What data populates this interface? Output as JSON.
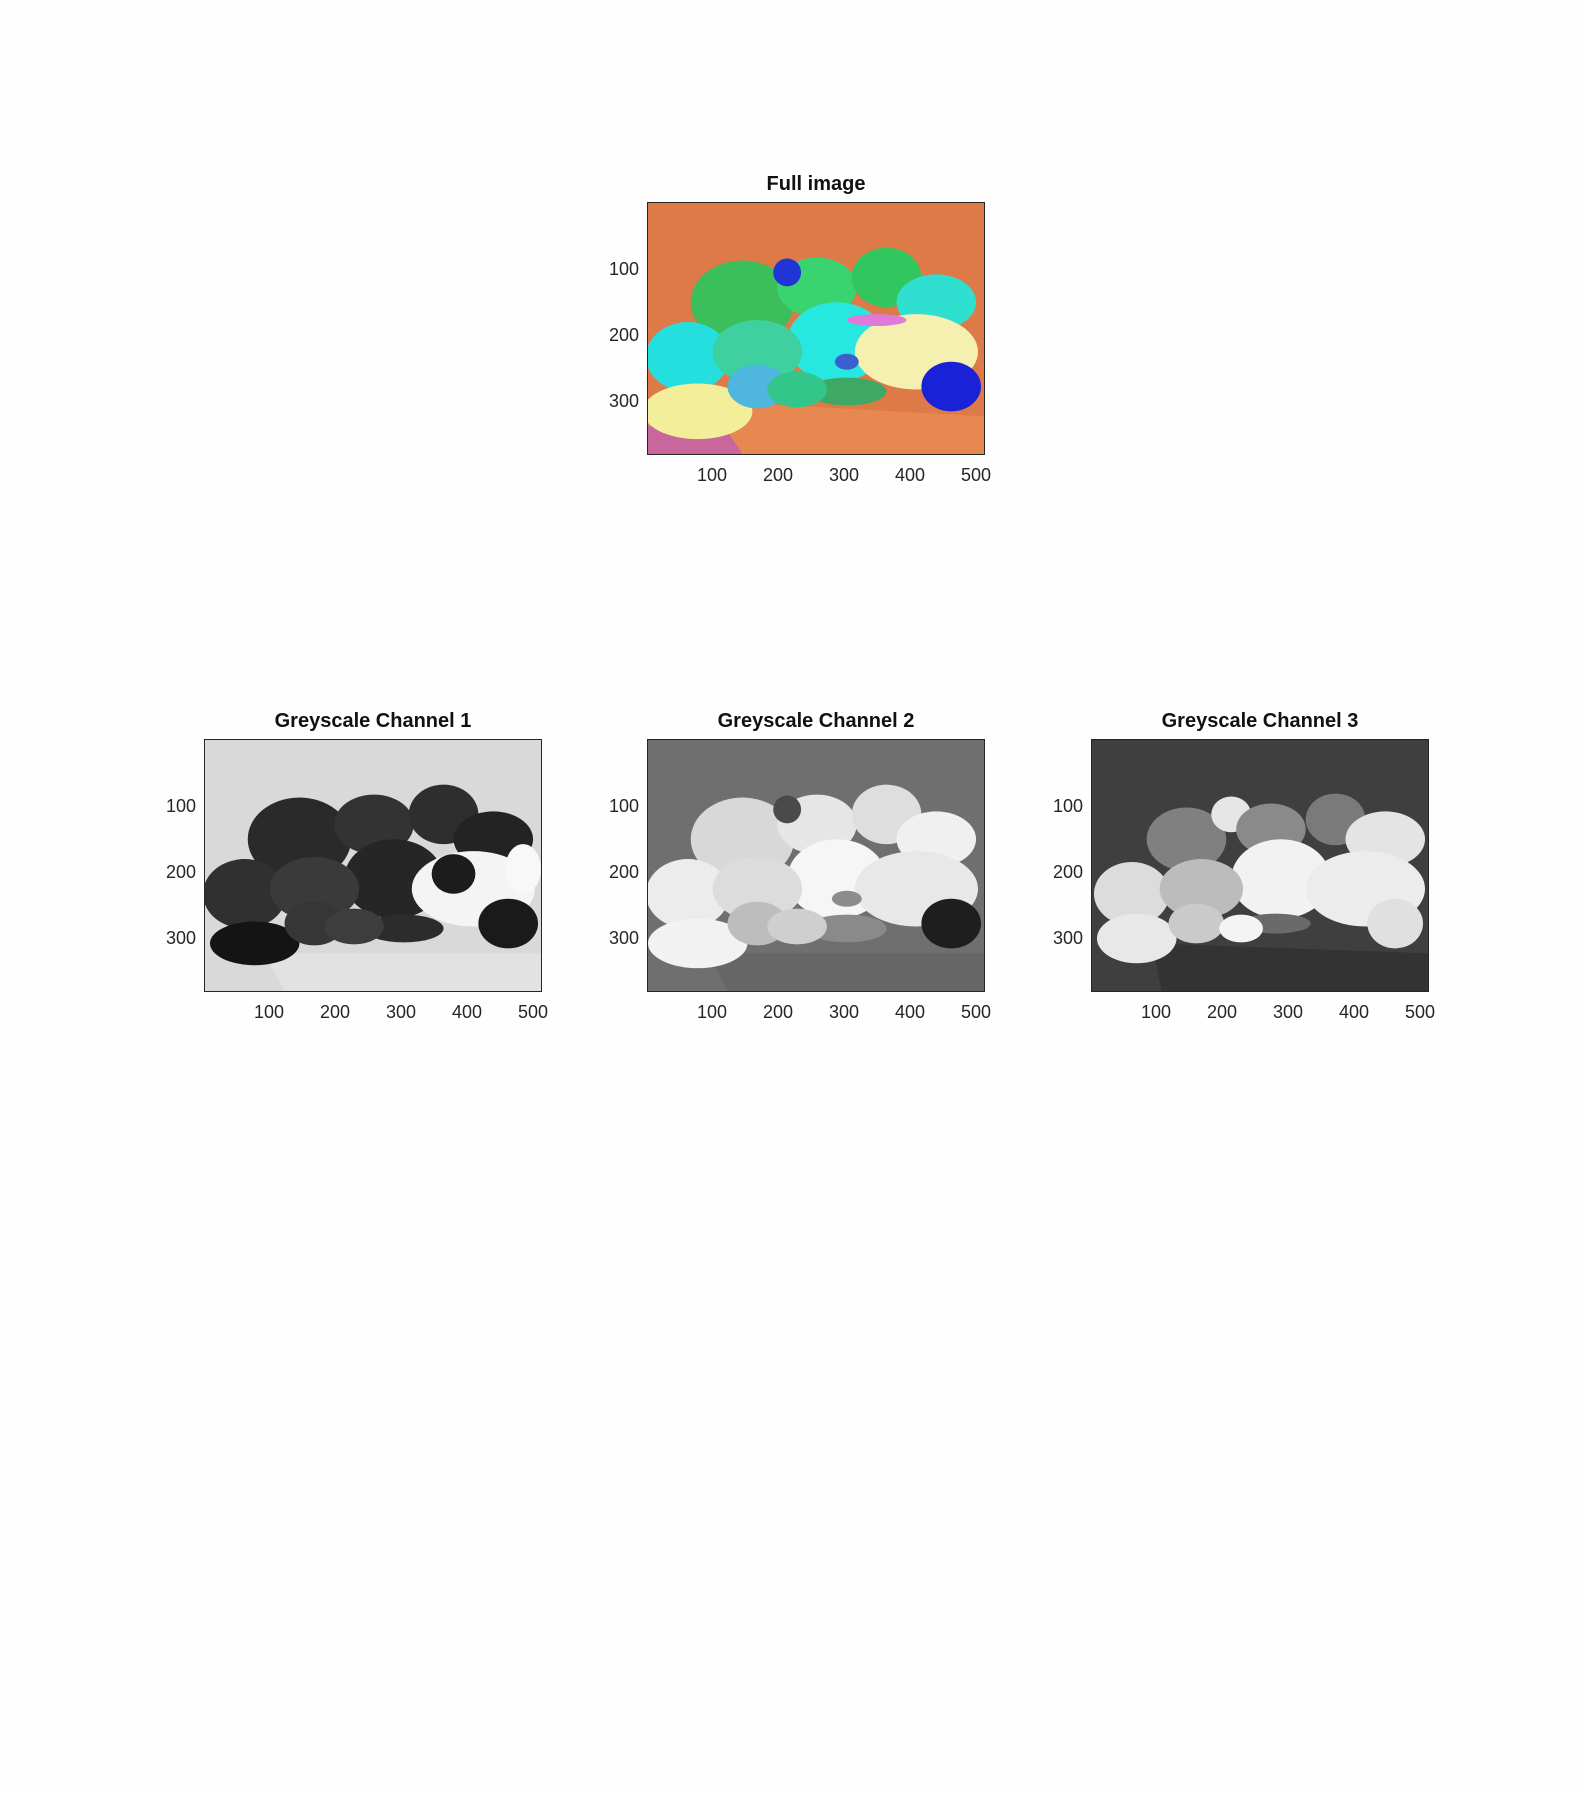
{
  "figure": {
    "panels": [
      {
        "id": "full",
        "title": "Full image",
        "colormap": "false-color",
        "xticks": [
          "100",
          "200",
          "300",
          "400",
          "500"
        ],
        "yticks": [
          "100",
          "200",
          "300"
        ]
      },
      {
        "id": "ch1",
        "title": "Greyscale Channel 1",
        "colormap": "grey",
        "xticks": [
          "100",
          "200",
          "300",
          "400",
          "500"
        ],
        "yticks": [
          "100",
          "200",
          "300"
        ]
      },
      {
        "id": "ch2",
        "title": "Greyscale Channel 2",
        "colormap": "grey",
        "xticks": [
          "100",
          "200",
          "300",
          "400",
          "500"
        ],
        "yticks": [
          "100",
          "200",
          "300"
        ]
      },
      {
        "id": "ch3",
        "title": "Greyscale Channel 3",
        "colormap": "grey",
        "xticks": [
          "100",
          "200",
          "300",
          "400",
          "500"
        ],
        "yticks": [
          "100",
          "200",
          "300"
        ]
      }
    ],
    "colors": {
      "full_background": "#de7a48",
      "full_peppers_green": "#2fd66a",
      "full_peppers_cyan": "#27e8e0",
      "full_peppers_light": "#f5f0a8",
      "full_garlic": "#1a22d8",
      "ch1_background": "#d9d9d9",
      "ch2_background": "#6f6f6f",
      "ch3_background": "#3f3f3f"
    }
  }
}
